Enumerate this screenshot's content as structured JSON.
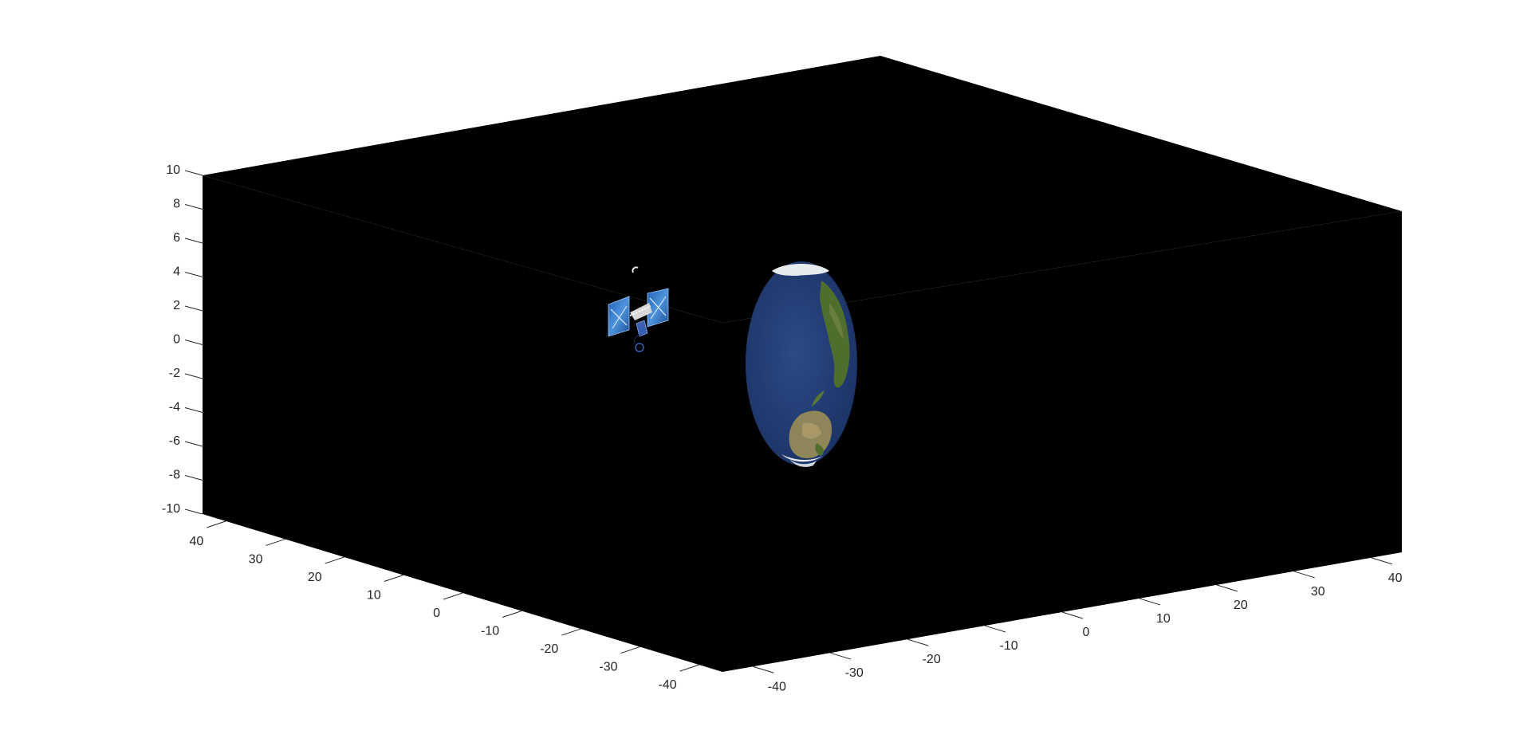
{
  "figure": {
    "background": "#ffffff",
    "axes_color": "#000000",
    "tick_color": "#262626"
  },
  "chart_data": {
    "type": "3d-scene",
    "title": "",
    "xlabel": "",
    "ylabel": "",
    "zlabel": "",
    "xlim": [
      -45,
      45
    ],
    "ylim": [
      -45,
      45
    ],
    "zlim": [
      -10,
      10
    ],
    "x_ticks": [
      "-40",
      "-30",
      "-20",
      "-10",
      "0",
      "10",
      "20",
      "30",
      "40"
    ],
    "y_ticks": [
      "40",
      "30",
      "20",
      "10",
      "0",
      "-10",
      "-20",
      "-30",
      "-40"
    ],
    "z_ticks": [
      "10",
      "8",
      "6",
      "4",
      "2",
      "0",
      "-2",
      "-4",
      "-6",
      "-8",
      "-10"
    ],
    "grid": false,
    "objects": [
      {
        "name": "earth",
        "kind": "textured-sphere",
        "center": [
          0,
          0,
          0
        ],
        "radius": 6,
        "colors": {
          "ocean": "#243f78",
          "land": "#4f6e2e",
          "desert": "#9a8a5c",
          "ice": "#e6ebf0"
        }
      },
      {
        "name": "satellite",
        "kind": "spacecraft",
        "center": [
          -10,
          22,
          2
        ],
        "colors": {
          "panel": "#2f6fc4",
          "panel_light": "#6aa6e8",
          "body": "#d8d8d8"
        }
      }
    ]
  }
}
